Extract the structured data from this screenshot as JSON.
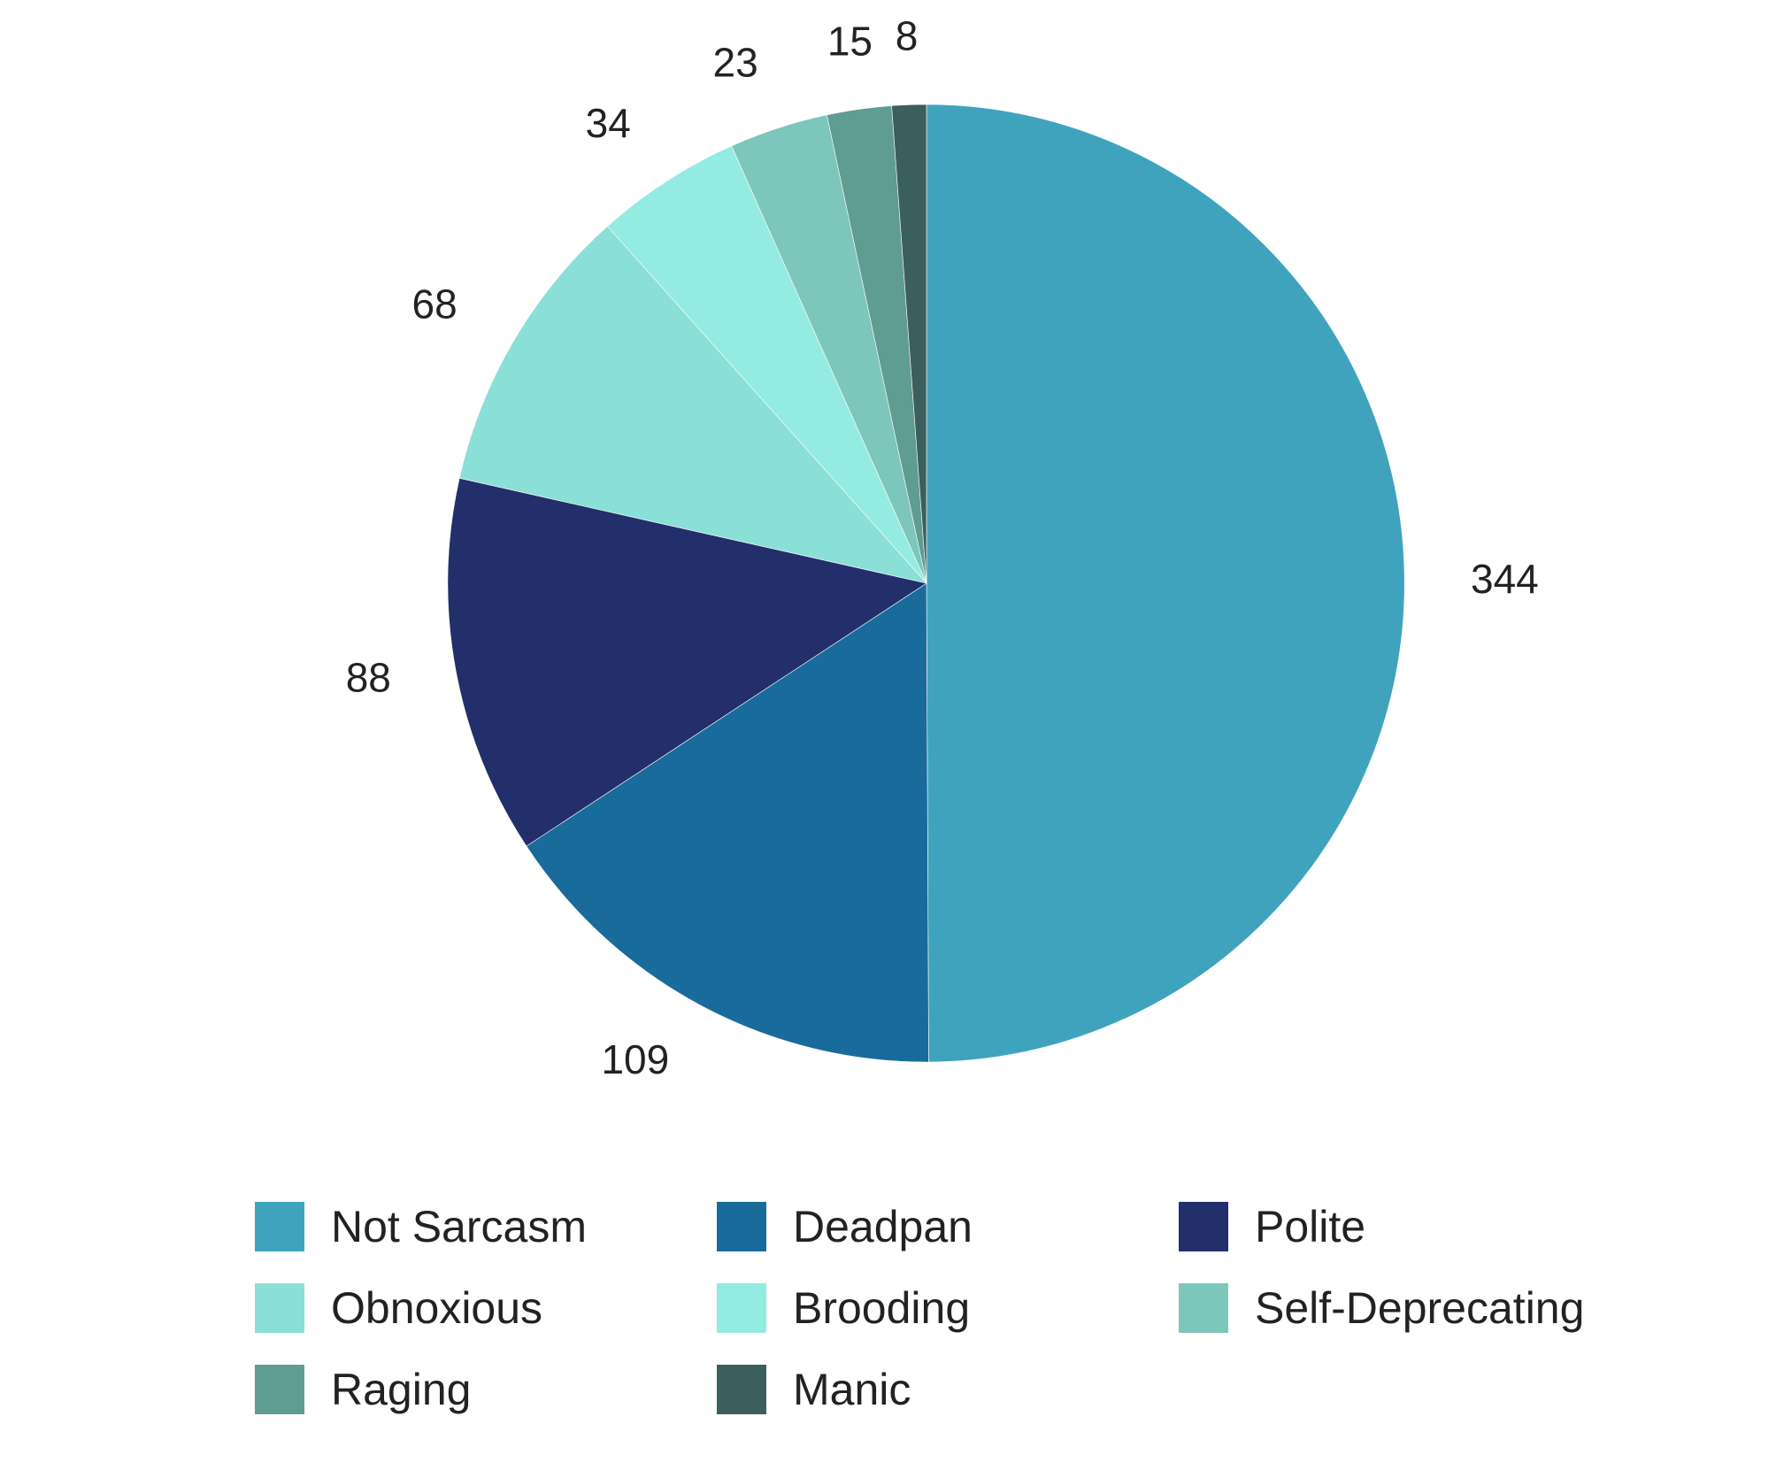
{
  "chart_data": {
    "type": "pie",
    "title": "",
    "slices": [
      {
        "label": "Not Sarcasm",
        "value": 344,
        "display": "344",
        "color": "#40a3bd"
      },
      {
        "label": "Deadpan",
        "value": 109,
        "display": "109",
        "color": "#196b9c"
      },
      {
        "label": "Polite",
        "value": 88,
        "display": "88",
        "color": "#222f6b"
      },
      {
        "label": "Obnoxious",
        "value": 68,
        "display": "68",
        "color": "#8adfd6"
      },
      {
        "label": "Brooding",
        "value": 34,
        "display": "34",
        "color": "#94ebe2"
      },
      {
        "label": "Self-Deprecating",
        "value": 23,
        "display": "23",
        "color": "#7cc6bc"
      },
      {
        "label": "Raging",
        "value": 15,
        "display": "15",
        "color": "#5f9c92"
      },
      {
        "label": "Manic",
        "value": 8,
        "display": "8",
        "color": "#3a5f5c"
      }
    ],
    "start_angle": "12 o'clock",
    "direction": "clockwise",
    "legend": {
      "position": "bottom",
      "columns": 3
    }
  }
}
